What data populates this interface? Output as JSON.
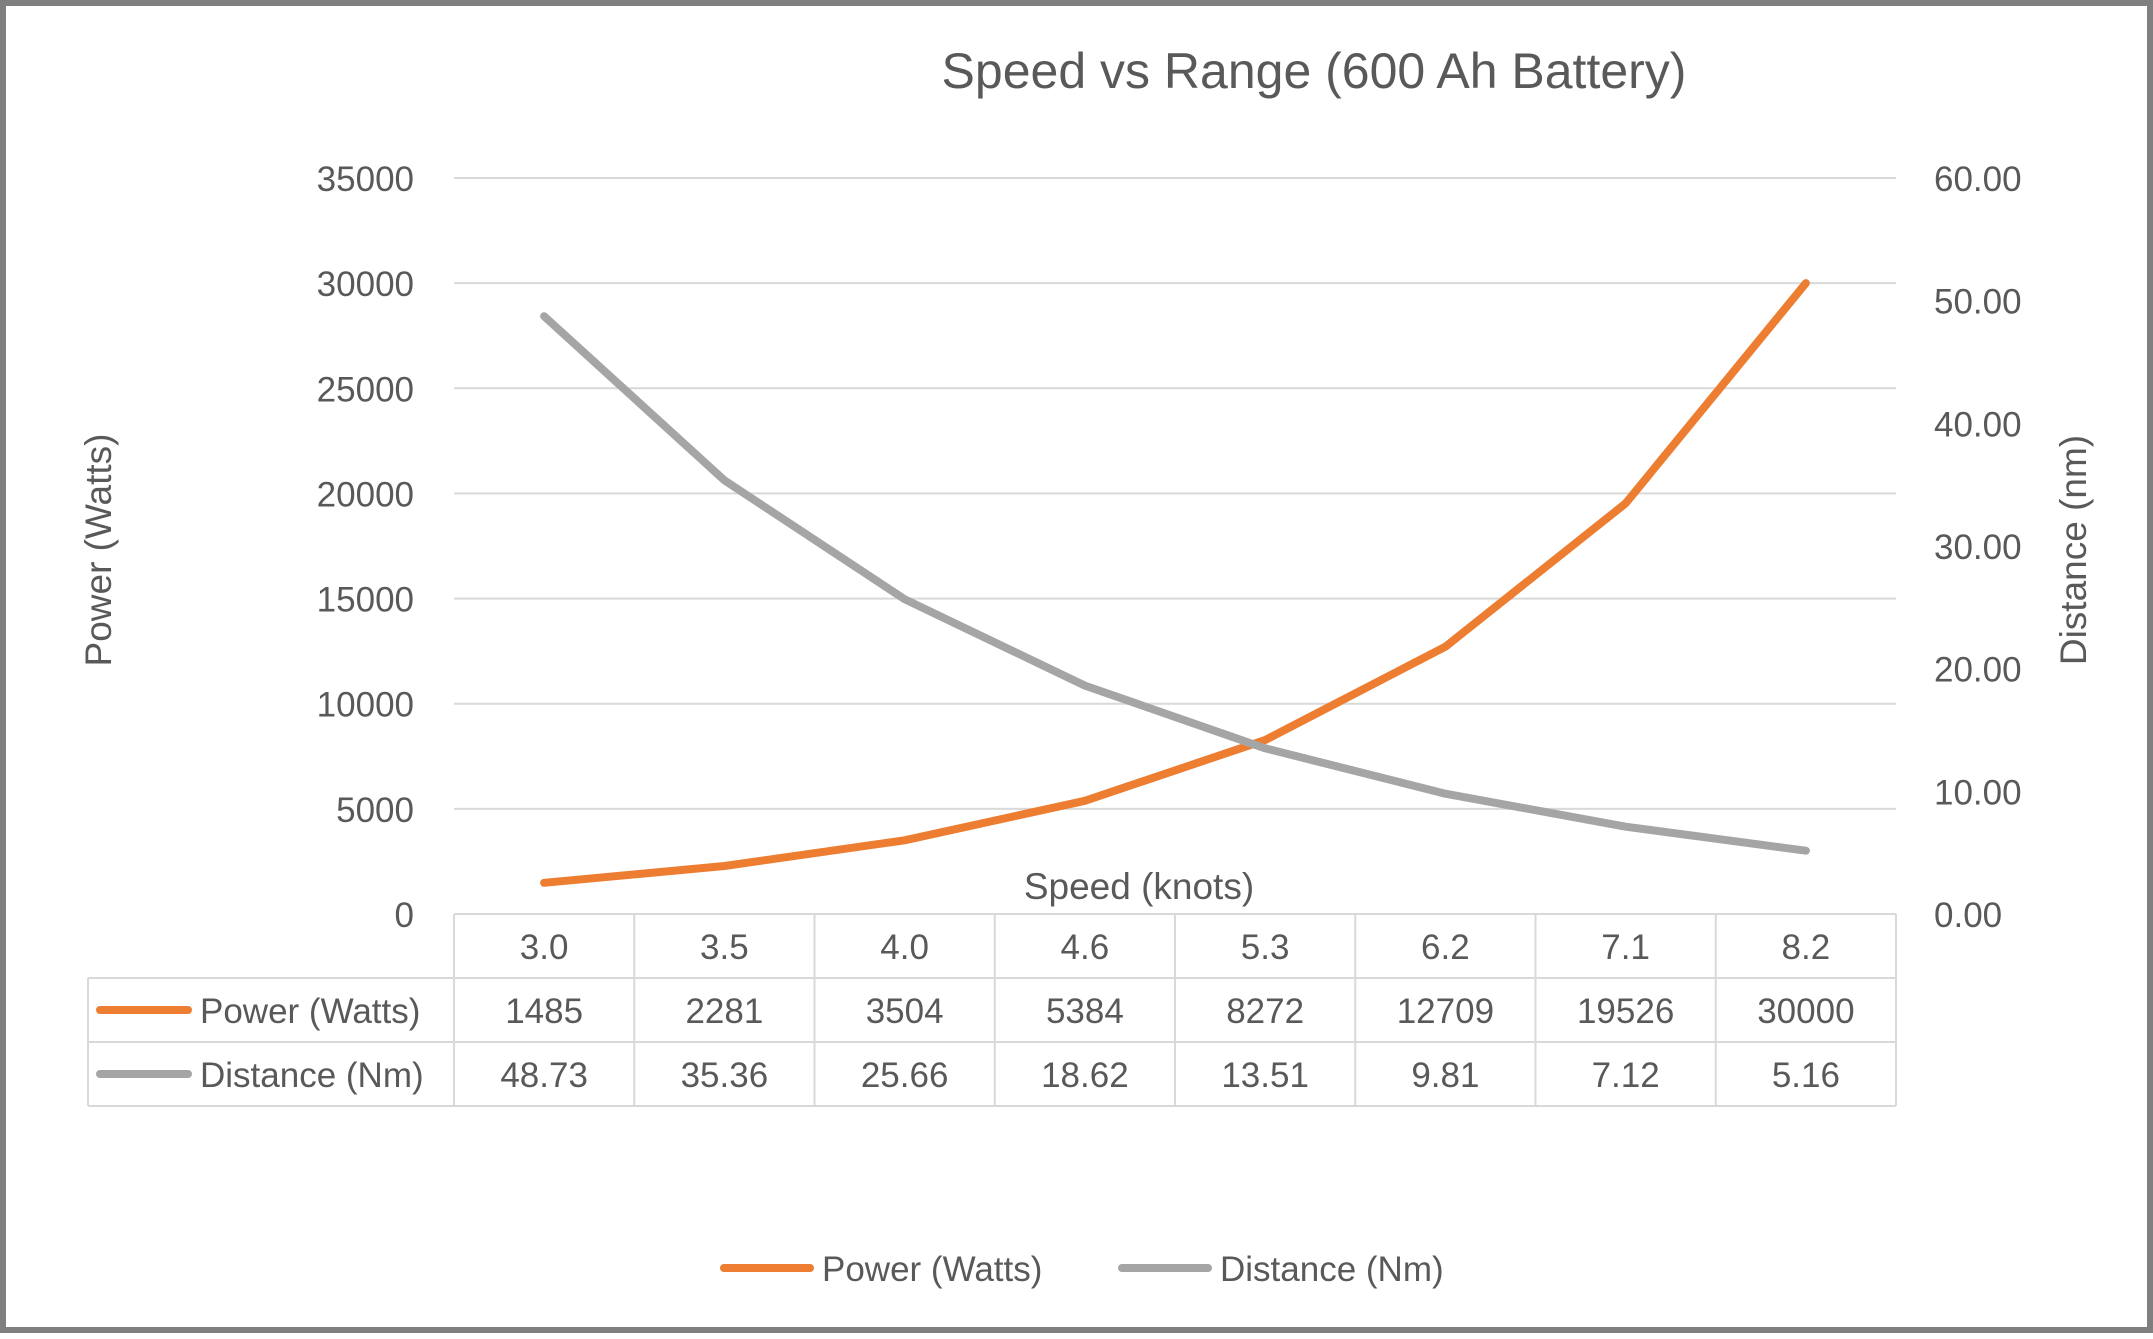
{
  "chart_data": {
    "type": "line",
    "title": "Speed vs Range (600 Ah Battery)",
    "xlabel": "Speed (knots)",
    "ylabel": "Power (Watts)",
    "y2label": "Distance (nm)",
    "categories": [
      "3.0",
      "3.5",
      "4.0",
      "4.6",
      "5.3",
      "6.2",
      "7.1",
      "8.2"
    ],
    "ylim": [
      0,
      35000
    ],
    "y2lim": [
      0,
      60
    ],
    "yticks": [
      "0",
      "5000",
      "10000",
      "15000",
      "20000",
      "25000",
      "30000",
      "35000"
    ],
    "y2ticks": [
      "0.00",
      "10.00",
      "20.00",
      "30.00",
      "40.00",
      "50.00",
      "60.00"
    ],
    "grid": true,
    "legend_position": "bottom",
    "data_table": true,
    "series": [
      {
        "name": "Power (Watts)",
        "axis": "left",
        "color": "#ed7d31",
        "values": [
          1485,
          2281,
          3504,
          5384,
          8272,
          12709,
          19526,
          30000
        ],
        "labels": [
          "1485",
          "2281",
          "3504",
          "5384",
          "8272",
          "12709",
          "19526",
          "30000"
        ]
      },
      {
        "name": "Distance (Nm)",
        "axis": "right",
        "color": "#a5a5a5",
        "values": [
          48.73,
          35.36,
          25.66,
          18.62,
          13.51,
          9.81,
          7.12,
          5.16
        ],
        "labels": [
          "48.73",
          "35.36",
          "25.66",
          "18.62",
          "13.51",
          "9.81",
          "7.12",
          "5.16"
        ]
      }
    ],
    "colors": {
      "text": "#595959",
      "grid": "#d9d9d9",
      "table_border": "#d9d9d9",
      "frame_border": "#7f7f7f"
    }
  }
}
